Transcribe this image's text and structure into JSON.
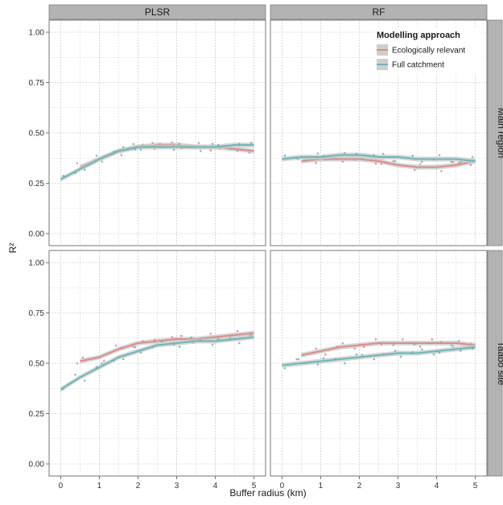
{
  "chart_data": {
    "type": "line",
    "xlabel": "Buffer radius (km)",
    "ylabel": "R²",
    "xlim": [
      0,
      5
    ],
    "ylim": [
      0,
      1
    ],
    "x_ticks": [
      "0",
      "1",
      "2",
      "3",
      "4",
      "5"
    ],
    "y_ticks": [
      "0.00",
      "0.25",
      "0.50",
      "0.75",
      "1.00"
    ],
    "col_facets": [
      "PLSR",
      "RF"
    ],
    "row_facets": [
      "Main region",
      "Taabo site"
    ],
    "grid": true,
    "legend": {
      "title": "Modelling approach",
      "placement": "top-right",
      "entries": [
        "Ecologically relevant",
        "Full catchment"
      ]
    },
    "colors": {
      "Ecologically relevant": "#d98c8c",
      "Full catchment": "#6fb5b5",
      "band": "#c9c9c9"
    },
    "x": [
      0,
      0.5,
      1,
      1.5,
      2,
      2.5,
      3,
      3.5,
      4,
      4.5,
      5
    ],
    "panels": [
      {
        "col": "PLSR",
        "row": "Main region",
        "series": [
          {
            "name": "Ecologically relevant",
            "x": [
              0.5,
              1,
              1.5,
              2,
              2.5,
              3,
              3.5,
              4,
              4.5,
              5
            ],
            "values": [
              0.33,
              0.37,
              0.41,
              0.43,
              0.44,
              0.44,
              0.43,
              0.43,
              0.42,
              0.41
            ]
          },
          {
            "name": "Full catchment",
            "x": [
              0,
              0.5,
              1,
              1.5,
              2,
              2.5,
              3,
              3.5,
              4,
              4.5,
              5
            ],
            "values": [
              0.27,
              0.32,
              0.37,
              0.41,
              0.43,
              0.43,
              0.43,
              0.43,
              0.43,
              0.44,
              0.44
            ]
          }
        ]
      },
      {
        "col": "RF",
        "row": "Main region",
        "series": [
          {
            "name": "Ecologically relevant",
            "x": [
              0.5,
              1,
              1.5,
              2,
              2.5,
              3,
              3.5,
              4,
              4.5,
              5
            ],
            "values": [
              0.36,
              0.37,
              0.37,
              0.37,
              0.36,
              0.34,
              0.33,
              0.33,
              0.34,
              0.36
            ]
          },
          {
            "name": "Full catchment",
            "x": [
              0,
              0.5,
              1,
              1.5,
              2,
              2.5,
              3,
              3.5,
              4,
              4.5,
              5
            ],
            "values": [
              0.37,
              0.38,
              0.38,
              0.39,
              0.39,
              0.38,
              0.38,
              0.37,
              0.37,
              0.37,
              0.36
            ]
          }
        ]
      },
      {
        "col": "PLSR",
        "row": "Taabo site",
        "series": [
          {
            "name": "Ecologically relevant",
            "x": [
              0.5,
              1,
              1.5,
              2,
              2.5,
              3,
              3.5,
              4,
              4.5,
              5
            ],
            "values": [
              0.51,
              0.53,
              0.57,
              0.6,
              0.61,
              0.62,
              0.62,
              0.63,
              0.64,
              0.65
            ]
          },
          {
            "name": "Full catchment",
            "x": [
              0,
              0.5,
              1,
              1.5,
              2,
              2.5,
              3,
              3.5,
              4,
              4.5,
              5
            ],
            "values": [
              0.37,
              0.43,
              0.48,
              0.53,
              0.56,
              0.59,
              0.6,
              0.61,
              0.61,
              0.62,
              0.63
            ]
          }
        ]
      },
      {
        "col": "RF",
        "row": "Taabo site",
        "series": [
          {
            "name": "Ecologically relevant",
            "x": [
              0.5,
              1,
              1.5,
              2,
              2.5,
              3,
              3.5,
              4,
              4.5,
              5
            ],
            "values": [
              0.54,
              0.56,
              0.58,
              0.59,
              0.6,
              0.6,
              0.6,
              0.6,
              0.6,
              0.59
            ]
          },
          {
            "name": "Full catchment",
            "x": [
              0,
              0.5,
              1,
              1.5,
              2,
              2.5,
              3,
              3.5,
              4,
              4.5,
              5
            ],
            "values": [
              0.49,
              0.5,
              0.51,
              0.52,
              0.53,
              0.54,
              0.55,
              0.55,
              0.56,
              0.57,
              0.58
            ]
          }
        ]
      }
    ]
  }
}
